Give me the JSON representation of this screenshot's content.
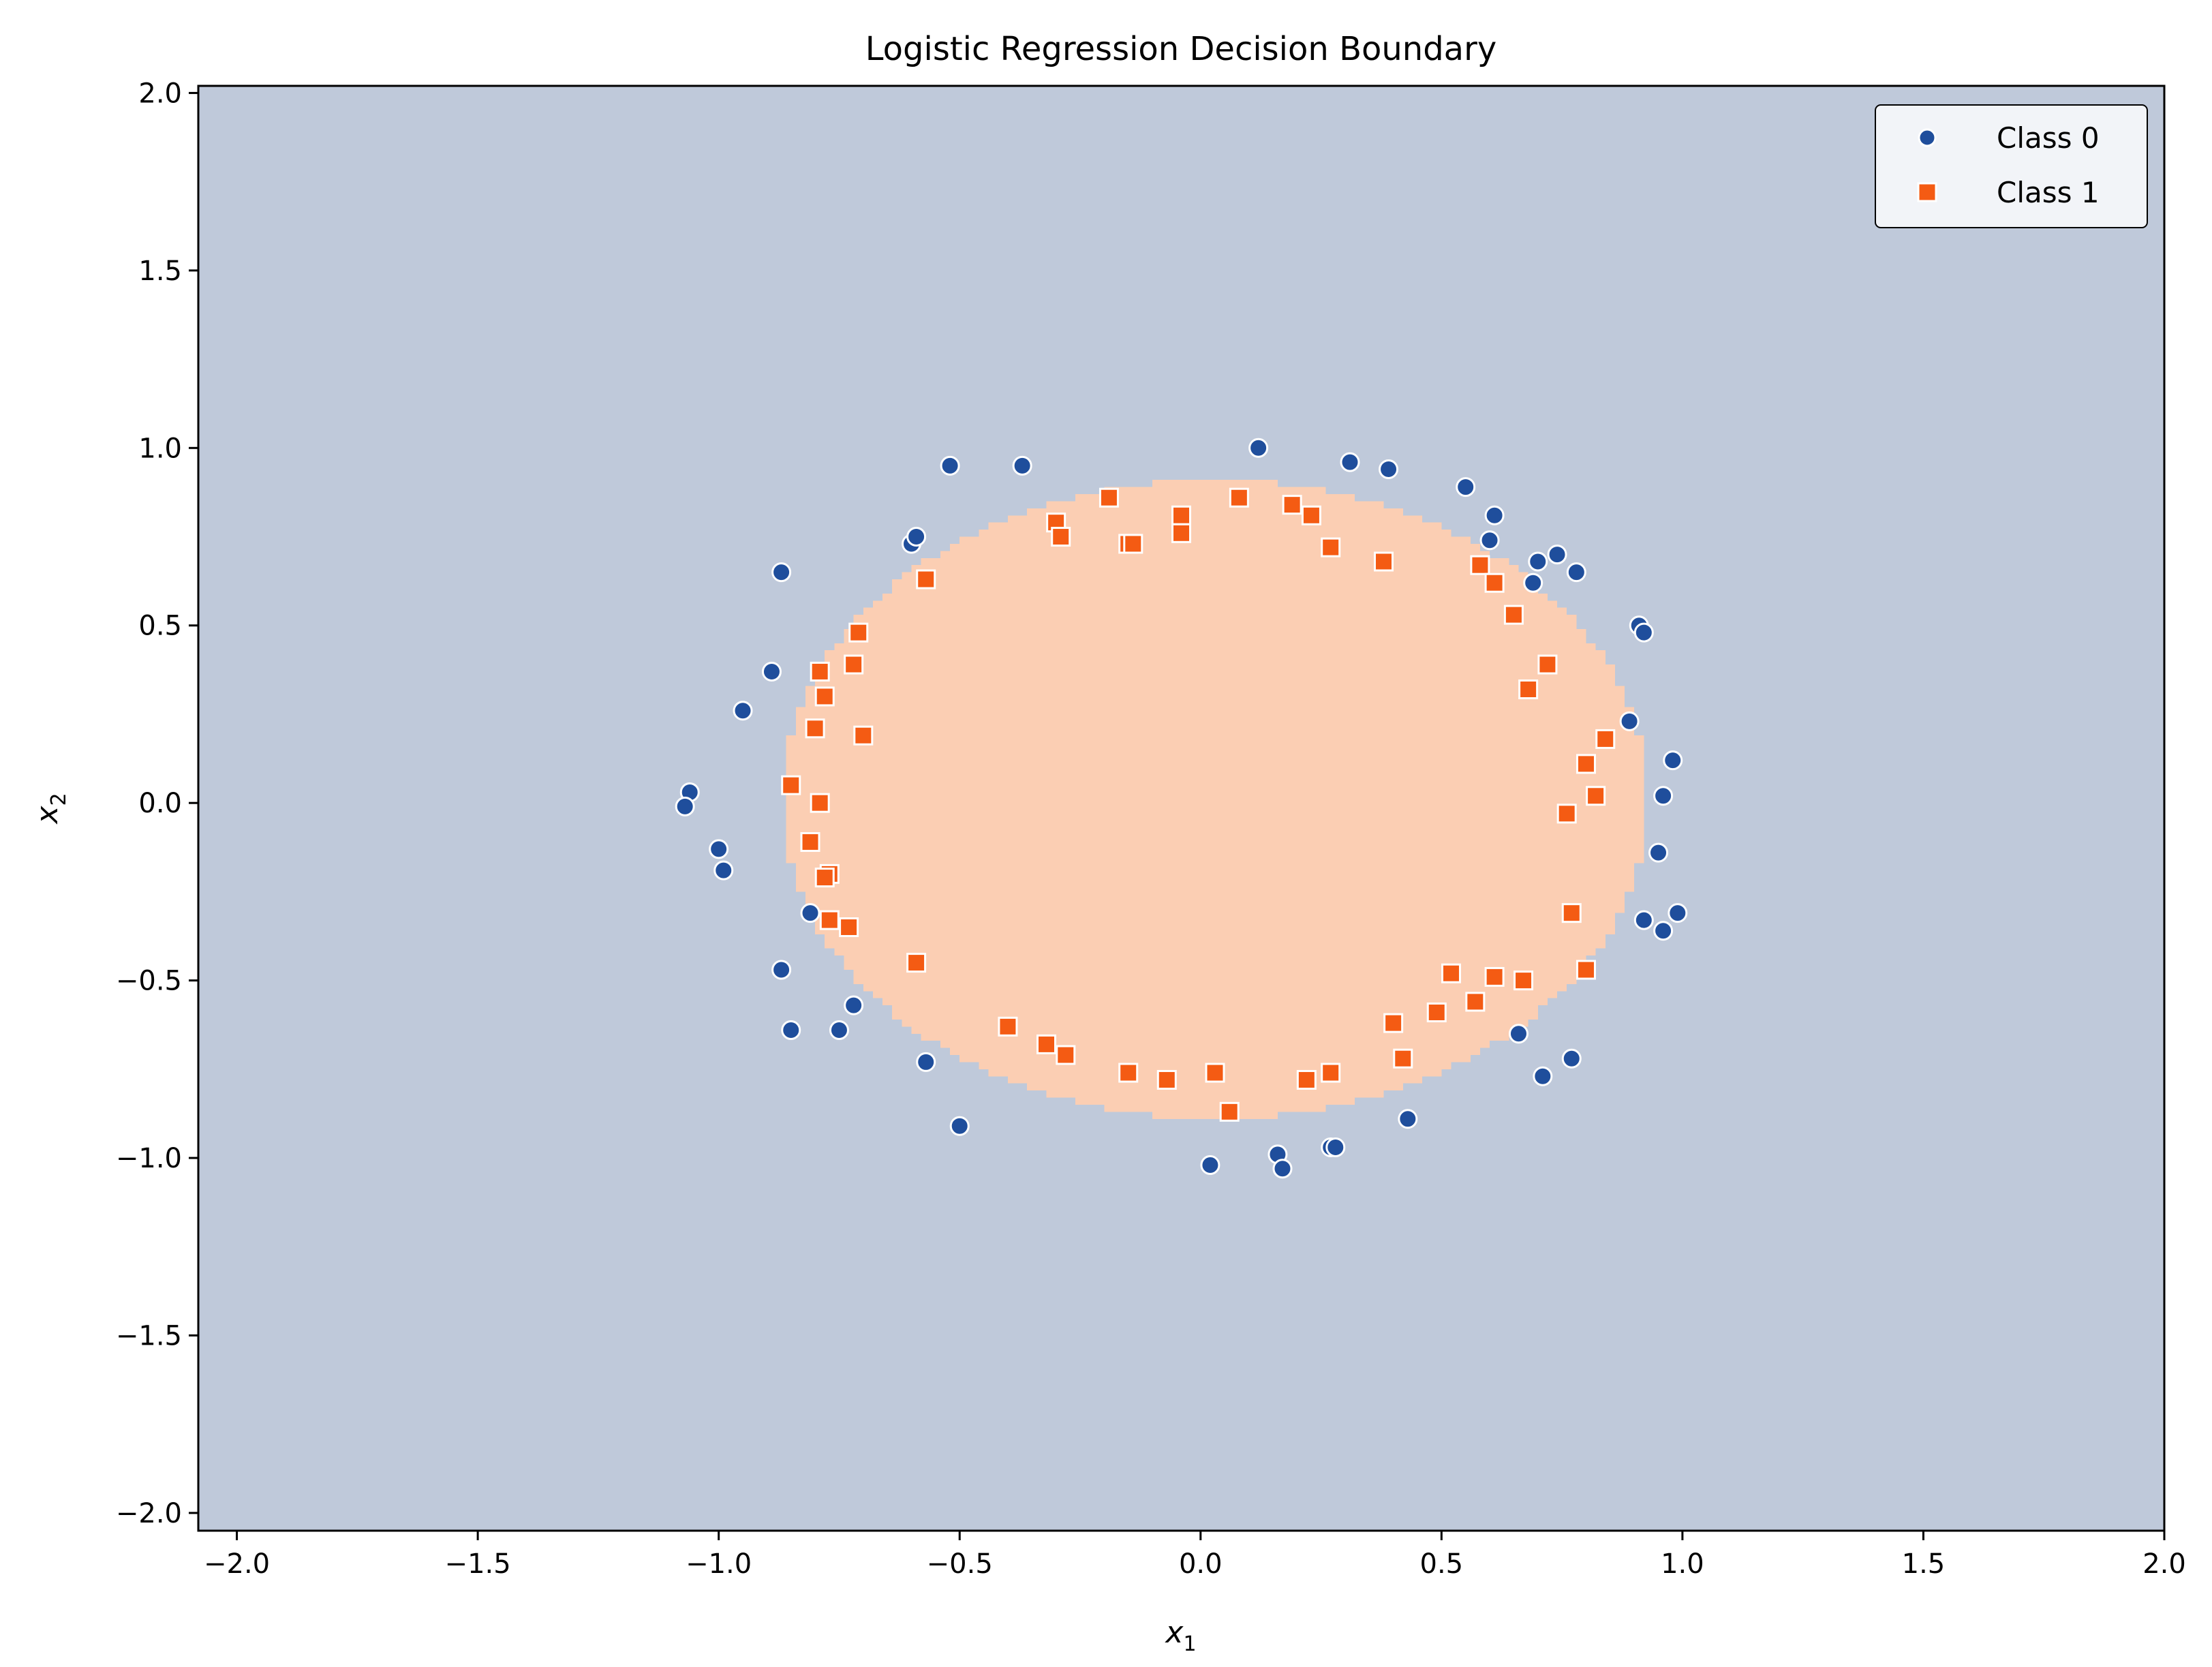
{
  "chart_data": {
    "type": "scatter",
    "title": "Logistic Regression Decision Boundary",
    "xlabel": "x",
    "xlabel_sub": "1",
    "ylabel": "x",
    "ylabel_sub": "2",
    "xlim": [
      -2.08,
      2.0
    ],
    "ylim": [
      -2.05,
      2.02
    ],
    "xticks": [
      -2.0,
      -1.5,
      -1.0,
      -0.5,
      0.0,
      0.5,
      1.0,
      1.5,
      2.0
    ],
    "xtick_labels": [
      "−2.0",
      "−1.5",
      "−1.0",
      "−0.5",
      "0.0",
      "0.5",
      "1.0",
      "1.5",
      "2.0"
    ],
    "yticks": [
      -2.0,
      -1.5,
      -1.0,
      -0.5,
      0.0,
      0.5,
      1.0,
      1.5,
      2.0
    ],
    "ytick_labels": [
      "−2.0",
      "−1.5",
      "−1.0",
      "−0.5",
      "0.0",
      "0.5",
      "1.0",
      "1.5",
      "2.0"
    ],
    "grid": false,
    "legend_position": "top-right",
    "background_region": {
      "label": "Class 0 region",
      "color": "#bfc9da"
    },
    "decision_region": {
      "label": "Class 1 region",
      "color": "#fbceb3",
      "shape": "ellipse",
      "center": [
        0.03,
        0.01
      ],
      "radius_x": 0.9,
      "radius_y": 0.9
    },
    "series": [
      {
        "name": "Class 0",
        "marker": "circle",
        "color": "#1f4e9c",
        "points": [
          [
            0.12,
            1.0
          ],
          [
            -0.52,
            0.95
          ],
          [
            -0.37,
            0.95
          ],
          [
            0.31,
            0.96
          ],
          [
            0.39,
            0.94
          ],
          [
            0.55,
            0.89
          ],
          [
            0.61,
            0.81
          ],
          [
            0.6,
            0.74
          ],
          [
            -0.6,
            0.73
          ],
          [
            -0.59,
            0.75
          ],
          [
            0.74,
            0.7
          ],
          [
            0.7,
            0.68
          ],
          [
            0.78,
            0.65
          ],
          [
            0.69,
            0.62
          ],
          [
            -0.87,
            0.65
          ],
          [
            0.91,
            0.5
          ],
          [
            0.92,
            0.48
          ],
          [
            -0.89,
            0.37
          ],
          [
            -0.95,
            0.26
          ],
          [
            0.89,
            0.23
          ],
          [
            0.98,
            0.12
          ],
          [
            -1.06,
            0.03
          ],
          [
            -1.07,
            -0.01
          ],
          [
            0.96,
            0.02
          ],
          [
            -1.0,
            -0.13
          ],
          [
            -0.99,
            -0.19
          ],
          [
            0.95,
            -0.14
          ],
          [
            -0.81,
            -0.31
          ],
          [
            0.92,
            -0.33
          ],
          [
            0.96,
            -0.36
          ],
          [
            0.99,
            -0.31
          ],
          [
            -0.87,
            -0.47
          ],
          [
            -0.72,
            -0.57
          ],
          [
            -0.85,
            -0.64
          ],
          [
            -0.75,
            -0.64
          ],
          [
            0.66,
            -0.65
          ],
          [
            0.77,
            -0.72
          ],
          [
            0.71,
            -0.77
          ],
          [
            -0.57,
            -0.73
          ],
          [
            -0.5,
            -0.91
          ],
          [
            0.43,
            -0.89
          ],
          [
            0.16,
            -0.99
          ],
          [
            0.17,
            -1.03
          ],
          [
            0.27,
            -0.97
          ],
          [
            0.28,
            -0.97
          ],
          [
            0.02,
            -1.02
          ]
        ]
      },
      {
        "name": "Class 1",
        "marker": "square",
        "color": "#f45b13",
        "points": [
          [
            -0.19,
            0.86
          ],
          [
            0.08,
            0.86
          ],
          [
            0.19,
            0.84
          ],
          [
            0.23,
            0.81
          ],
          [
            -0.04,
            0.81
          ],
          [
            -0.3,
            0.79
          ],
          [
            -0.29,
            0.75
          ],
          [
            -0.04,
            0.76
          ],
          [
            -0.15,
            0.73
          ],
          [
            -0.14,
            0.73
          ],
          [
            0.27,
            0.72
          ],
          [
            0.38,
            0.68
          ],
          [
            0.58,
            0.67
          ],
          [
            0.61,
            0.62
          ],
          [
            -0.57,
            0.63
          ],
          [
            0.65,
            0.53
          ],
          [
            -0.71,
            0.48
          ],
          [
            -0.79,
            0.37
          ],
          [
            -0.72,
            0.39
          ],
          [
            0.72,
            0.39
          ],
          [
            0.68,
            0.32
          ],
          [
            -0.78,
            0.3
          ],
          [
            -0.8,
            0.21
          ],
          [
            -0.7,
            0.19
          ],
          [
            0.84,
            0.18
          ],
          [
            0.8,
            0.11
          ],
          [
            -0.85,
            0.05
          ],
          [
            -0.79,
            0.0
          ],
          [
            0.82,
            0.02
          ],
          [
            0.76,
            -0.03
          ],
          [
            -0.81,
            -0.11
          ],
          [
            -0.77,
            -0.2
          ],
          [
            -0.78,
            -0.21
          ],
          [
            -0.77,
            -0.33
          ],
          [
            -0.73,
            -0.35
          ],
          [
            0.77,
            -0.31
          ],
          [
            -0.59,
            -0.45
          ],
          [
            0.8,
            -0.47
          ],
          [
            0.52,
            -0.48
          ],
          [
            0.61,
            -0.49
          ],
          [
            0.67,
            -0.5
          ],
          [
            0.49,
            -0.59
          ],
          [
            0.57,
            -0.56
          ],
          [
            -0.4,
            -0.63
          ],
          [
            0.4,
            -0.62
          ],
          [
            -0.32,
            -0.68
          ],
          [
            -0.28,
            -0.71
          ],
          [
            0.42,
            -0.72
          ],
          [
            -0.15,
            -0.76
          ],
          [
            -0.07,
            -0.78
          ],
          [
            0.03,
            -0.76
          ],
          [
            0.22,
            -0.78
          ],
          [
            0.27,
            -0.76
          ],
          [
            0.06,
            -0.87
          ]
        ]
      }
    ]
  }
}
